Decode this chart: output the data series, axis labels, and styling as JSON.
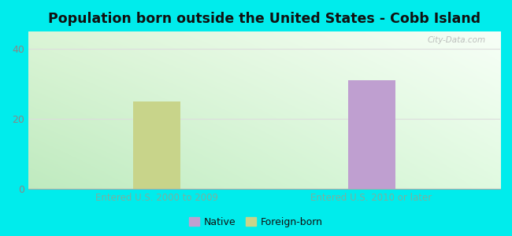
{
  "title": "Population born outside the United States - Cobb Island",
  "background_color": "#00ECEC",
  "categories": [
    "Entered U.S. 2000 to 2009",
    "Entered U.S. 2010 or later"
  ],
  "foreign_born_values": [
    25,
    0
  ],
  "native_values": [
    0,
    31
  ],
  "bar_width": 0.22,
  "foreign_born_color": "#c8d48a",
  "native_color": "#bf9fd0",
  "ylim": [
    0,
    45
  ],
  "yticks": [
    0,
    20,
    40
  ],
  "xlabel_color": "#7ab0a0",
  "xlabel_fontsize": 8.5,
  "title_fontsize": 12.5,
  "watermark": "City-Data.com",
  "legend_native_color": "#bf9fd0",
  "legend_foreign_color": "#c8d48a",
  "tick_label_color": "#888888",
  "grid_color": "#dddddd",
  "plot_bg_topleft": "#d8f0d0",
  "plot_bg_topright": "#f0fff8",
  "plot_bg_bottomleft": "#c0e8c0",
  "plot_bg_bottomright": "#e8fff0"
}
